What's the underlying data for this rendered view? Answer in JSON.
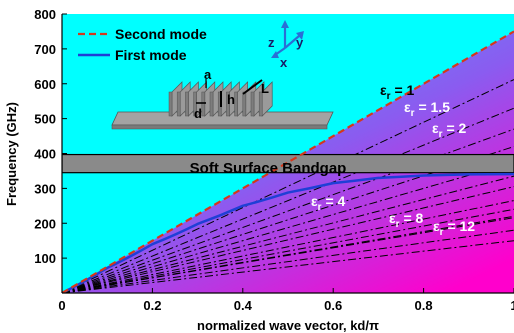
{
  "chart_data": {
    "type": "line",
    "xlabel": "normalized wave vector, kd/π",
    "ylabel": "Frequency (GHz)",
    "xlim": [
      0,
      1
    ],
    "ylim": [
      0,
      800
    ],
    "x_ticks": [
      {
        "value": 0,
        "label": "0"
      },
      {
        "value": 0.2,
        "label": "0.2"
      },
      {
        "value": 0.4,
        "label": "0.4"
      },
      {
        "value": 0.6,
        "label": "0.6"
      },
      {
        "value": 0.8,
        "label": "0.8"
      },
      {
        "value": 1,
        "label": "1"
      }
    ],
    "y_ticks": [
      {
        "value": 100,
        "label": "100"
      },
      {
        "value": 200,
        "label": "200"
      },
      {
        "value": 300,
        "label": "300"
      },
      {
        "value": 400,
        "label": "400"
      },
      {
        "value": 500,
        "label": "500"
      },
      {
        "value": 600,
        "label": "600"
      },
      {
        "value": 700,
        "label": "700"
      },
      {
        "value": 800,
        "label": "800"
      }
    ],
    "grid": false,
    "legend_position": "top-left",
    "series": [
      {
        "name": "Second mode",
        "style": "dashed",
        "color": "#d4381c",
        "x": [
          0,
          0.2,
          0.4,
          0.6,
          0.8,
          1.0
        ],
        "y": [
          0,
          150,
          300,
          450,
          600,
          750
        ]
      },
      {
        "name": "First mode",
        "style": "solid",
        "color": "#1f3fd6",
        "x": [
          0,
          0.1,
          0.2,
          0.3,
          0.4,
          0.5,
          0.6,
          0.7,
          0.8,
          0.9,
          1.0
        ],
        "y": [
          0,
          72,
          140,
          198,
          250,
          288,
          315,
          330,
          337,
          340,
          341
        ]
      }
    ],
    "bandgap": {
      "label": "Soft Surface Bandgap",
      "range": [
        345,
        397
      ],
      "color": "#8a8a8a"
    },
    "light_lines": [
      {
        "label": "1",
        "slope": 750
      },
      {
        "label": "1.5",
        "slope": 612
      },
      {
        "label": "2",
        "slope": 530
      },
      {
        "slope": 470
      },
      {
        "slope": 420
      },
      {
        "label": "4",
        "slope": 375
      },
      {
        "slope": 335
      },
      {
        "slope": 305
      },
      {
        "label": "8",
        "slope": 265
      },
      {
        "slope": 240
      },
      {
        "slope": 220
      },
      {
        "label": "12",
        "slope": 216
      },
      {
        "slope": 180
      },
      {
        "slope": 150
      }
    ],
    "epsilon_labels": [
      {
        "prefix": "ε",
        "sub": "r",
        "value": " = 1",
        "color": "#000000"
      },
      {
        "prefix": "ε",
        "sub": "r",
        "value": " = 1.5",
        "color": "#ffffff"
      },
      {
        "prefix": "ε",
        "sub": "r",
        "value": " = 2",
        "color": "#ffffff"
      },
      {
        "prefix": "ε",
        "sub": "r",
        "value": " = 4",
        "color": "#ffffff"
      },
      {
        "prefix": "ε",
        "sub": "r",
        "value": " = 8",
        "color": "#ffffff"
      },
      {
        "prefix": "ε",
        "sub": "r",
        "value": " = 12",
        "color": "#ffffff"
      }
    ],
    "background": {
      "upper": "#00ffff",
      "lower_start": "#33bbff",
      "lower_end": "#ff00cc"
    }
  },
  "inset": {
    "labels": {
      "a": "a",
      "h": "h",
      "L": "L",
      "d": "d"
    },
    "axes": {
      "z": "z",
      "y": "y",
      "x": "x"
    }
  }
}
